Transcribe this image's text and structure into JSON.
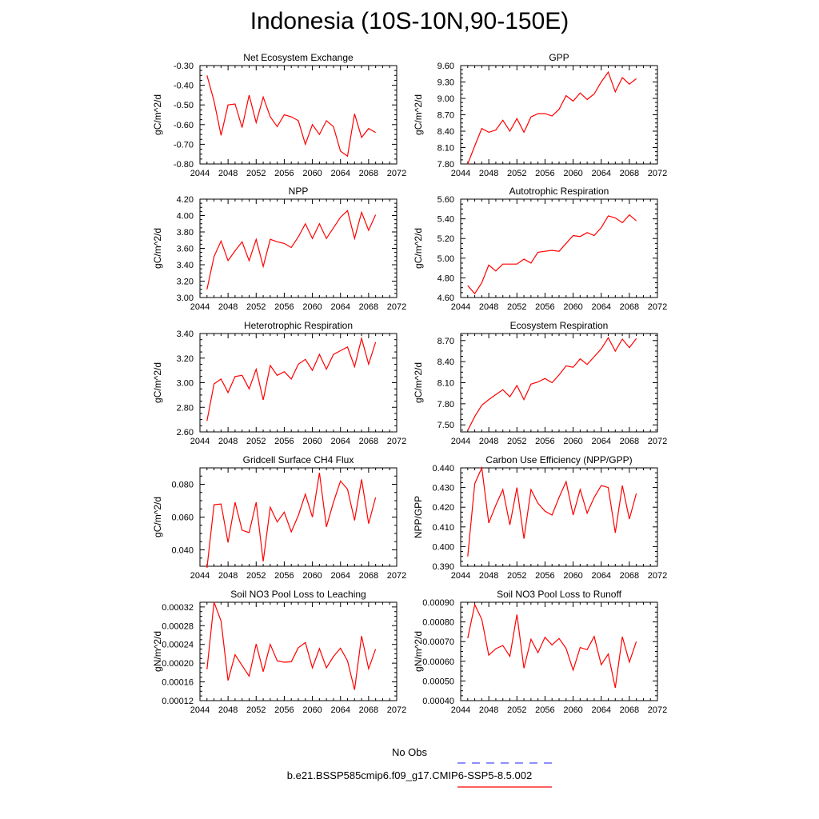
{
  "title": "Indonesia (10S-10N,90-150E)",
  "legend": {
    "obs_label": "No Obs",
    "obs_color": "#4b4bff",
    "case_label": "b.e21.BSSP585cmip6.f09_g17.CMIP6-SSP5-8.5.002",
    "case_color": "#ff0000"
  },
  "chart_data": [
    {
      "type": "line",
      "title": "Net Ecosystem Exchange",
      "ylabel": "gC/m^2/d",
      "xlim": [
        2044,
        2072
      ],
      "x_ticks": [
        2044,
        2048,
        2052,
        2056,
        2060,
        2064,
        2068,
        2072
      ],
      "ylim": [
        -0.8,
        -0.3
      ],
      "y_ticks": [
        -0.8,
        -0.7,
        -0.6,
        -0.5,
        -0.4,
        -0.3
      ],
      "y_tick_labels": [
        "-0.80",
        "-0.70",
        "-0.60",
        "-0.50",
        "-0.40",
        "-0.30"
      ],
      "x": [
        2045,
        2046,
        2047,
        2048,
        2049,
        2050,
        2051,
        2052,
        2053,
        2054,
        2055,
        2056,
        2057,
        2058,
        2059,
        2060,
        2061,
        2062,
        2063,
        2064,
        2065,
        2066,
        2067,
        2068,
        2069
      ],
      "values": [
        -0.35,
        -0.48,
        -0.655,
        -0.5,
        -0.495,
        -0.615,
        -0.45,
        -0.59,
        -0.46,
        -0.56,
        -0.61,
        -0.55,
        -0.56,
        -0.58,
        -0.7,
        -0.6,
        -0.65,
        -0.58,
        -0.61,
        -0.735,
        -0.76,
        -0.545,
        -0.665,
        -0.62,
        -0.64
      ]
    },
    {
      "type": "line",
      "title": "GPP",
      "ylabel": "gC/m^2/d",
      "xlim": [
        2044,
        2072
      ],
      "x_ticks": [
        2044,
        2048,
        2052,
        2056,
        2060,
        2064,
        2068,
        2072
      ],
      "ylim": [
        7.8,
        9.6
      ],
      "y_ticks": [
        7.8,
        8.1,
        8.4,
        8.7,
        9.0,
        9.3,
        9.6
      ],
      "y_tick_labels": [
        "7.80",
        "8.10",
        "8.40",
        "8.70",
        "9.00",
        "9.30",
        "9.60"
      ],
      "x": [
        2045,
        2046,
        2047,
        2048,
        2049,
        2050,
        2051,
        2052,
        2053,
        2054,
        2055,
        2056,
        2057,
        2058,
        2059,
        2060,
        2061,
        2062,
        2063,
        2064,
        2065,
        2066,
        2067,
        2068,
        2069
      ],
      "values": [
        7.8,
        8.13,
        8.45,
        8.38,
        8.42,
        8.6,
        8.4,
        8.63,
        8.38,
        8.66,
        8.72,
        8.72,
        8.68,
        8.8,
        9.05,
        8.95,
        9.1,
        8.98,
        9.08,
        9.3,
        9.48,
        9.12,
        9.38,
        9.26,
        9.36
      ]
    },
    {
      "type": "line",
      "title": "NPP",
      "ylabel": "gC/m^2/d",
      "xlim": [
        2044,
        2072
      ],
      "x_ticks": [
        2044,
        2048,
        2052,
        2056,
        2060,
        2064,
        2068,
        2072
      ],
      "ylim": [
        3.0,
        4.2
      ],
      "y_ticks": [
        3.0,
        3.2,
        3.4,
        3.6,
        3.8,
        4.0,
        4.2
      ],
      "y_tick_labels": [
        "3.00",
        "3.20",
        "3.40",
        "3.60",
        "3.80",
        "4.00",
        "4.20"
      ],
      "x": [
        2045,
        2046,
        2047,
        2048,
        2049,
        2050,
        2051,
        2052,
        2053,
        2054,
        2055,
        2056,
        2057,
        2058,
        2059,
        2060,
        2061,
        2062,
        2063,
        2064,
        2065,
        2066,
        2067,
        2068,
        2069
      ],
      "values": [
        3.1,
        3.5,
        3.69,
        3.45,
        3.57,
        3.68,
        3.45,
        3.71,
        3.38,
        3.71,
        3.68,
        3.66,
        3.61,
        3.74,
        3.9,
        3.72,
        3.9,
        3.72,
        3.85,
        3.98,
        4.06,
        3.72,
        4.04,
        3.82,
        4.01
      ]
    },
    {
      "type": "line",
      "title": "Autotrophic Respiration",
      "ylabel": "gC/m^2/d",
      "xlim": [
        2044,
        2072
      ],
      "x_ticks": [
        2044,
        2048,
        2052,
        2056,
        2060,
        2064,
        2068,
        2072
      ],
      "ylim": [
        4.6,
        5.6
      ],
      "y_ticks": [
        4.6,
        4.8,
        5.0,
        5.2,
        5.4,
        5.6
      ],
      "y_tick_labels": [
        "4.60",
        "4.80",
        "5.00",
        "5.20",
        "5.40",
        "5.60"
      ],
      "x": [
        2045,
        2046,
        2047,
        2048,
        2049,
        2050,
        2051,
        2052,
        2053,
        2054,
        2055,
        2056,
        2057,
        2058,
        2059,
        2060,
        2061,
        2062,
        2063,
        2064,
        2065,
        2066,
        2067,
        2068,
        2069
      ],
      "values": [
        4.72,
        4.64,
        4.75,
        4.93,
        4.87,
        4.94,
        4.94,
        4.94,
        4.99,
        4.95,
        5.06,
        5.07,
        5.08,
        5.07,
        5.15,
        5.23,
        5.22,
        5.26,
        5.23,
        5.31,
        5.43,
        5.41,
        5.36,
        5.44,
        5.38
      ]
    },
    {
      "type": "line",
      "title": "Heterotrophic Respiration",
      "ylabel": "gC/m^2/d",
      "xlim": [
        2044,
        2072
      ],
      "x_ticks": [
        2044,
        2048,
        2052,
        2056,
        2060,
        2064,
        2068,
        2072
      ],
      "ylim": [
        2.6,
        3.4
      ],
      "y_ticks": [
        2.6,
        2.8,
        3.0,
        3.2,
        3.4
      ],
      "y_tick_labels": [
        "2.60",
        "2.80",
        "3.00",
        "3.20",
        "3.40"
      ],
      "x": [
        2045,
        2046,
        2047,
        2048,
        2049,
        2050,
        2051,
        2052,
        2053,
        2054,
        2055,
        2056,
        2057,
        2058,
        2059,
        2060,
        2061,
        2062,
        2063,
        2064,
        2065,
        2066,
        2067,
        2068,
        2069
      ],
      "values": [
        2.69,
        2.99,
        3.03,
        2.92,
        3.05,
        3.06,
        2.95,
        3.11,
        2.86,
        3.14,
        3.06,
        3.09,
        3.03,
        3.15,
        3.19,
        3.1,
        3.23,
        3.11,
        3.23,
        3.26,
        3.29,
        3.13,
        3.36,
        3.15,
        3.33
      ]
    },
    {
      "type": "line",
      "title": "Ecosystem Respiration",
      "ylabel": "gC/m^2/d",
      "xlim": [
        2044,
        2072
      ],
      "x_ticks": [
        2044,
        2048,
        2052,
        2056,
        2060,
        2064,
        2068,
        2072
      ],
      "ylim": [
        7.4,
        8.8
      ],
      "y_ticks": [
        7.5,
        7.8,
        8.1,
        8.4,
        8.7
      ],
      "y_tick_labels": [
        "7.50",
        "7.80",
        "8.10",
        "8.40",
        "8.70"
      ],
      "x": [
        2045,
        2046,
        2047,
        2048,
        2049,
        2050,
        2051,
        2052,
        2053,
        2054,
        2055,
        2056,
        2057,
        2058,
        2059,
        2060,
        2061,
        2062,
        2063,
        2064,
        2065,
        2066,
        2067,
        2068,
        2069
      ],
      "values": [
        7.42,
        7.62,
        7.78,
        7.86,
        7.93,
        8.0,
        7.9,
        8.06,
        7.86,
        8.08,
        8.11,
        8.16,
        8.1,
        8.21,
        8.34,
        8.32,
        8.44,
        8.36,
        8.47,
        8.58,
        8.74,
        8.55,
        8.72,
        8.6,
        8.73
      ]
    },
    {
      "type": "line",
      "title": "Gridcell Surface CH4 Flux",
      "ylabel": "gC/m^2/d",
      "xlim": [
        2044,
        2072
      ],
      "x_ticks": [
        2044,
        2048,
        2052,
        2056,
        2060,
        2064,
        2068,
        2072
      ],
      "ylim": [
        0.03,
        0.09
      ],
      "y_ticks": [
        0.04,
        0.06,
        0.08
      ],
      "y_tick_labels": [
        "0.040",
        "0.060",
        "0.080"
      ],
      "x": [
        2045,
        2046,
        2047,
        2048,
        2049,
        2050,
        2051,
        2052,
        2053,
        2054,
        2055,
        2056,
        2057,
        2058,
        2059,
        2060,
        2061,
        2062,
        2063,
        2064,
        2065,
        2066,
        2067,
        2068,
        2069
      ],
      "values": [
        0.029,
        0.0675,
        0.068,
        0.0445,
        0.069,
        0.052,
        0.0505,
        0.069,
        0.033,
        0.066,
        0.057,
        0.063,
        0.051,
        0.061,
        0.074,
        0.06,
        0.087,
        0.054,
        0.069,
        0.082,
        0.077,
        0.058,
        0.083,
        0.056,
        0.072
      ]
    },
    {
      "type": "line",
      "title": "Carbon Use Efficiency (NPP/GPP)",
      "ylabel": "NPP/GPP",
      "xlim": [
        2044,
        2072
      ],
      "x_ticks": [
        2044,
        2048,
        2052,
        2056,
        2060,
        2064,
        2068,
        2072
      ],
      "ylim": [
        0.39,
        0.44
      ],
      "y_ticks": [
        0.39,
        0.4,
        0.41,
        0.42,
        0.43,
        0.44
      ],
      "y_tick_labels": [
        "0.390",
        "0.400",
        "0.410",
        "0.420",
        "0.430",
        "0.440"
      ],
      "x": [
        2045,
        2046,
        2047,
        2048,
        2049,
        2050,
        2051,
        2052,
        2053,
        2054,
        2055,
        2056,
        2057,
        2058,
        2059,
        2060,
        2061,
        2062,
        2063,
        2064,
        2065,
        2066,
        2067,
        2068,
        2069
      ],
      "values": [
        0.395,
        0.432,
        0.44,
        0.412,
        0.421,
        0.429,
        0.411,
        0.43,
        0.404,
        0.429,
        0.422,
        0.418,
        0.416,
        0.425,
        0.433,
        0.416,
        0.429,
        0.417,
        0.425,
        0.431,
        0.43,
        0.407,
        0.431,
        0.414,
        0.427
      ]
    },
    {
      "type": "line",
      "title": "Soil NO3 Pool Loss to Leaching",
      "ylabel": "gN/m^2/d",
      "xlim": [
        2044,
        2072
      ],
      "x_ticks": [
        2044,
        2048,
        2052,
        2056,
        2060,
        2064,
        2068,
        2072
      ],
      "ylim": [
        0.00012,
        0.00033
      ],
      "y_ticks": [
        0.00012,
        0.00016,
        0.0002,
        0.00024,
        0.00028,
        0.00032
      ],
      "y_tick_labels": [
        "0.00012",
        "0.00016",
        "0.00020",
        "0.00024",
        "0.00028",
        "0.00032"
      ],
      "x": [
        2045,
        2046,
        2047,
        2048,
        2049,
        2050,
        2051,
        2052,
        2053,
        2054,
        2055,
        2056,
        2057,
        2058,
        2059,
        2060,
        2061,
        2062,
        2063,
        2064,
        2065,
        2066,
        2067,
        2068,
        2069
      ],
      "values": [
        0.000187,
        0.00033,
        0.00029,
        0.000163,
        0.000218,
        0.000195,
        0.000172,
        0.000241,
        0.000182,
        0.00024,
        0.000205,
        0.000202,
        0.000203,
        0.000233,
        0.000244,
        0.00019,
        0.000231,
        0.00019,
        0.000214,
        0.000232,
        0.000205,
        0.000143,
        0.000258,
        0.000188,
        0.00023
      ]
    },
    {
      "type": "line",
      "title": "Soil NO3 Pool Loss to Runoff",
      "ylabel": "gN/m^2/d",
      "xlim": [
        2044,
        2072
      ],
      "x_ticks": [
        2044,
        2048,
        2052,
        2056,
        2060,
        2064,
        2068,
        2072
      ],
      "ylim": [
        0.0004,
        0.0009
      ],
      "y_ticks": [
        0.0004,
        0.0005,
        0.0006,
        0.0007,
        0.0008,
        0.0009
      ],
      "y_tick_labels": [
        "0.00040",
        "0.00050",
        "0.00060",
        "0.00070",
        "0.00080",
        "0.00090"
      ],
      "x": [
        2045,
        2046,
        2047,
        2048,
        2049,
        2050,
        2051,
        2052,
        2053,
        2054,
        2055,
        2056,
        2057,
        2058,
        2059,
        2060,
        2061,
        2062,
        2063,
        2064,
        2065,
        2066,
        2067,
        2068,
        2069
      ],
      "values": [
        0.000717,
        0.000888,
        0.000813,
        0.000631,
        0.000664,
        0.00068,
        0.000625,
        0.000838,
        0.000565,
        0.000712,
        0.000644,
        0.000722,
        0.000683,
        0.000716,
        0.000665,
        0.000555,
        0.00067,
        0.000659,
        0.000726,
        0.000582,
        0.000637,
        0.000465,
        0.000725,
        0.000596,
        0.0007
      ]
    }
  ]
}
